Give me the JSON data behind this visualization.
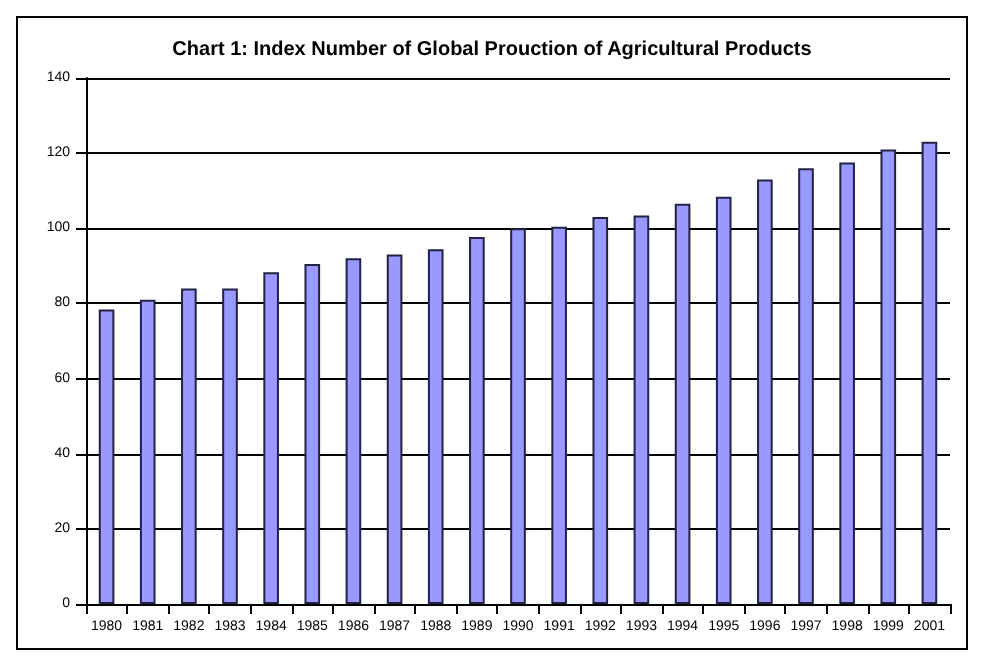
{
  "chart_data": {
    "type": "bar",
    "title": "Chart 1: Index Number of Global Prouction of Agricultural Products",
    "categories": [
      "1980",
      "1981",
      "1982",
      "1983",
      "1984",
      "1985",
      "1986",
      "1987",
      "1988",
      "1989",
      "1990",
      "1991",
      "1992",
      "1993",
      "1994",
      "1995",
      "1996",
      "1997",
      "1998",
      "1999",
      "2001"
    ],
    "values": [
      78.4,
      81,
      84,
      84,
      88.3,
      90.5,
      92,
      93,
      94.4,
      97.7,
      100,
      100.4,
      103,
      103.4,
      106.5,
      108.4,
      113,
      116,
      117.5,
      121,
      123
    ],
    "color": "#9999ff",
    "ylim": [
      0,
      140
    ],
    "yticks": [
      0,
      20,
      40,
      60,
      80,
      100,
      120,
      140
    ],
    "grid": "y"
  }
}
